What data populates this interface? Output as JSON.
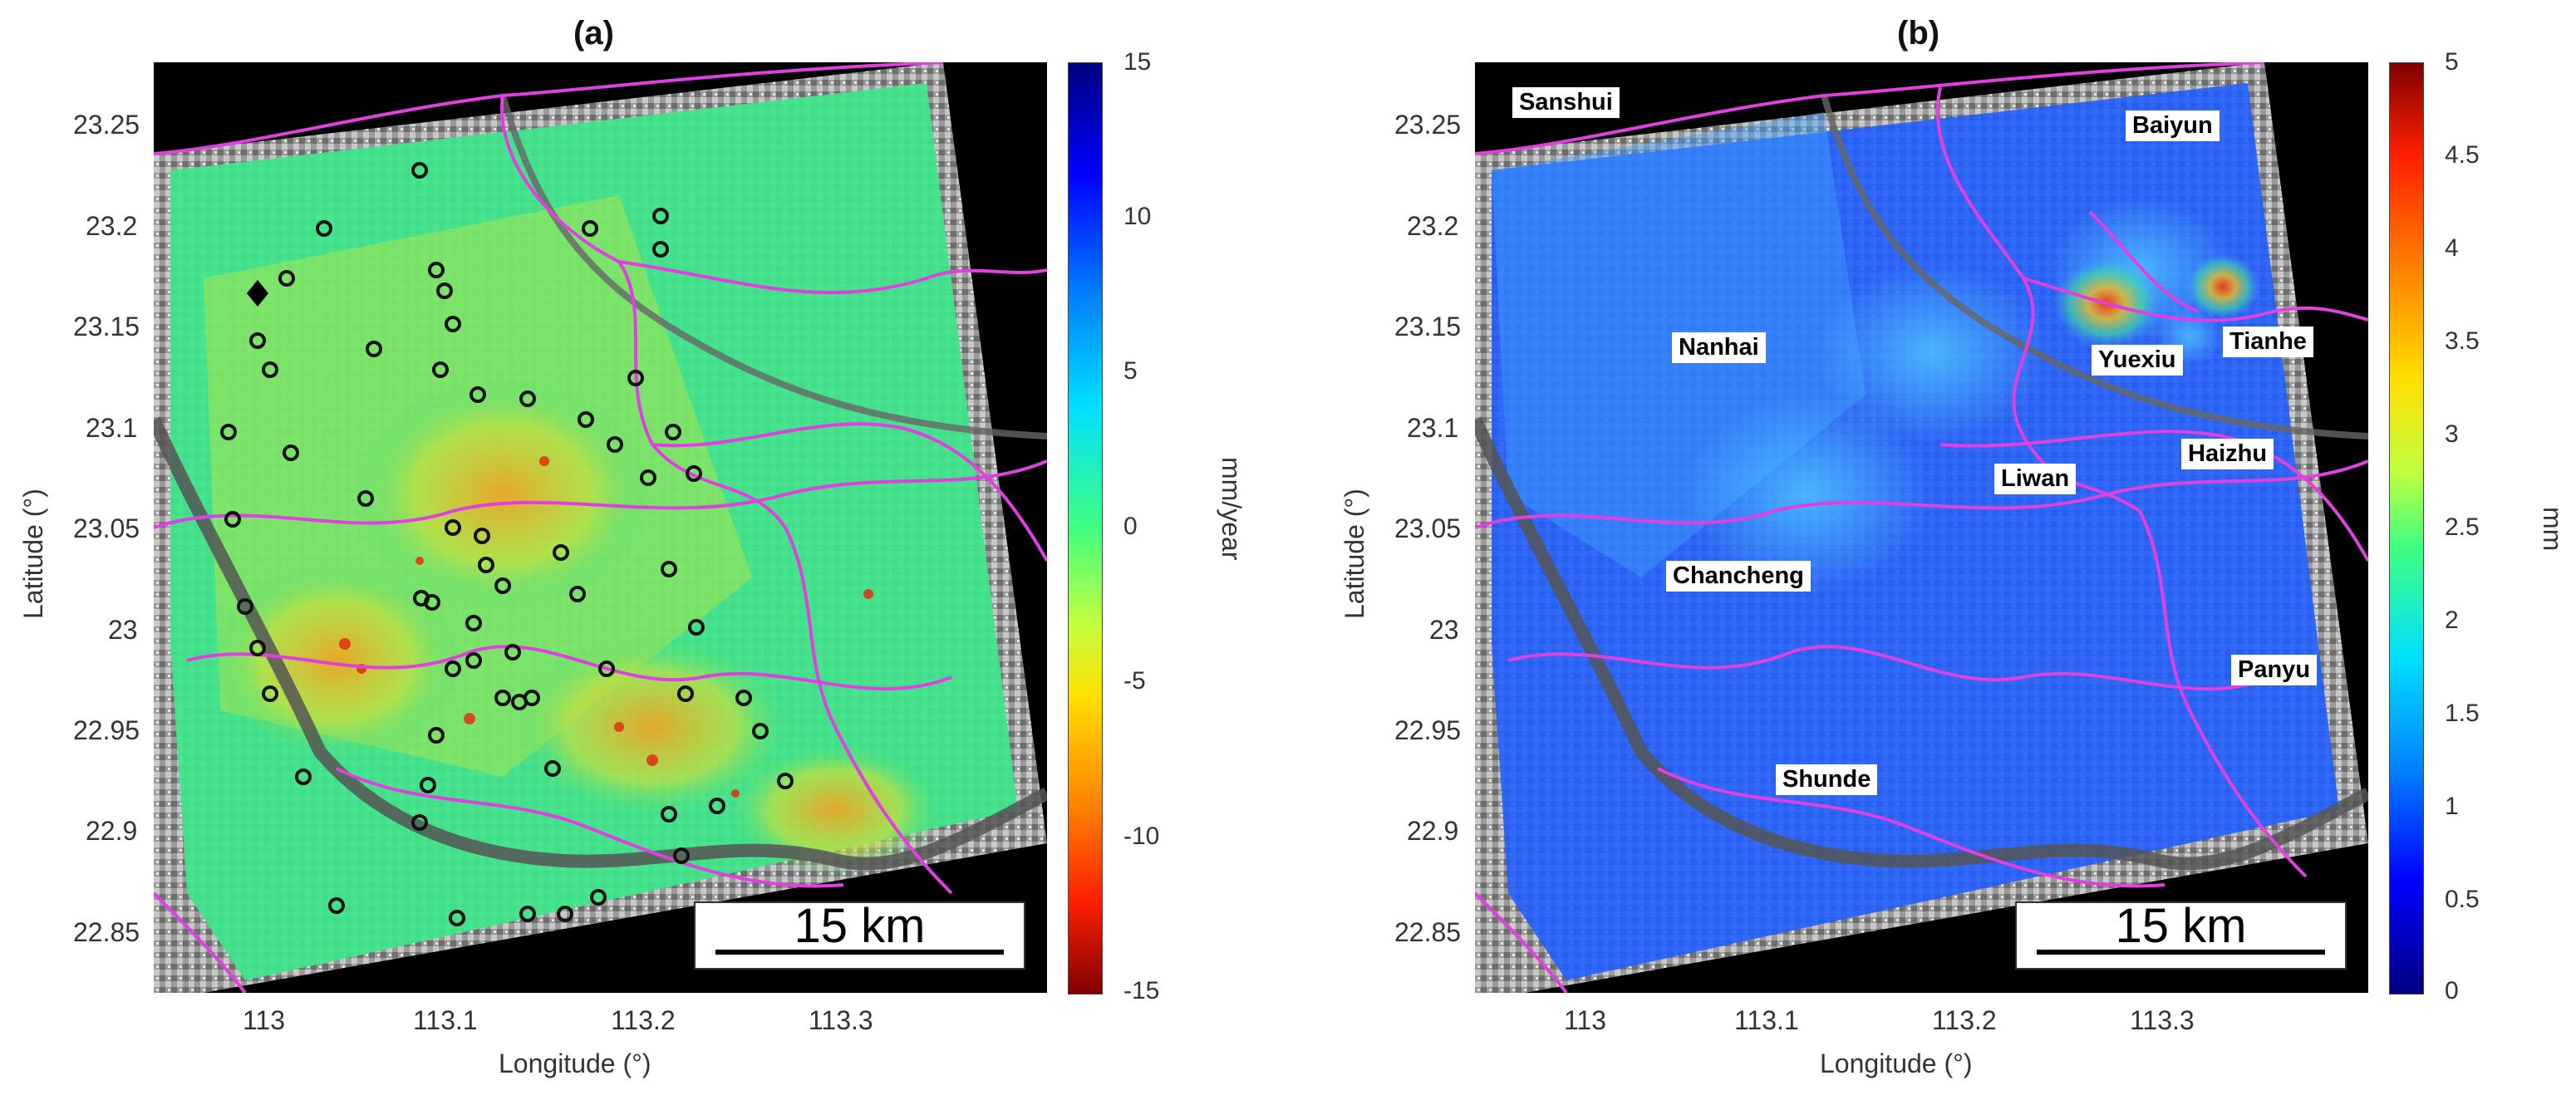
{
  "panels": [
    {
      "title": "(a)",
      "x_ticks": [
        "113",
        "113.1",
        "113.2",
        "113.3"
      ],
      "y_ticks": [
        "23.25",
        "23.2",
        "23.15",
        "23.1",
        "23.05",
        "23",
        "22.95",
        "22.9",
        "22.85"
      ],
      "x_label": "Longitude (°)",
      "y_label": "Latitude (°)",
      "colorbar": {
        "ticks": [
          "15",
          "10",
          "5",
          "0",
          "-5",
          "-10",
          "-15"
        ],
        "label": "mm/year",
        "range": [
          -15,
          15
        ],
        "colormap": "jet (reversed: red low, blue high)"
      },
      "scalebar": "15 km"
    },
    {
      "title": "(b)",
      "x_ticks": [
        "113",
        "113.1",
        "113.2",
        "113.3"
      ],
      "y_ticks": [
        "23.25",
        "23.2",
        "23.15",
        "23.1",
        "23.05",
        "23",
        "22.95",
        "22.9",
        "22.85"
      ],
      "x_label": "Longitude (°)",
      "y_label": "Latitude (°)",
      "colorbar": {
        "ticks": [
          "5",
          "4.5",
          "4",
          "3.5",
          "3",
          "2.5",
          "2",
          "1.5",
          "1",
          "0.5",
          "0"
        ],
        "label": "mm",
        "range": [
          0,
          5
        ],
        "colormap": "jet"
      },
      "scalebar": "15 km",
      "districts": [
        "Sanshui",
        "Baiyun",
        "Nanhai",
        "Yuexiu",
        "Tianhe",
        "Haizhu",
        "Liwan",
        "Chancheng",
        "Panyu",
        "Shunde"
      ]
    }
  ],
  "colors": {
    "background_outside": "#000000",
    "boundaries": "#e040e0",
    "station_markers": "#000000",
    "reference_point": "#000000"
  }
}
